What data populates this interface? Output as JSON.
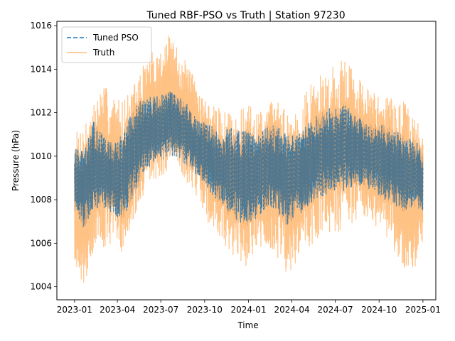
{
  "chart_data": {
    "type": "line",
    "title": "Tuned RBF-PSO vs Truth | Station 97230",
    "xlabel": "Time",
    "ylabel": "Pressure (hPa)",
    "xlim": [
      "2022-11-25",
      "2025-01-28"
    ],
    "ylim": [
      1003.4,
      1016.2
    ],
    "x_ticks": [
      "2023-01",
      "2023-04",
      "2023-07",
      "2023-10",
      "2024-01",
      "2024-04",
      "2024-07",
      "2024-10",
      "2025-01"
    ],
    "y_ticks": [
      "1004",
      "1006",
      "1008",
      "1010",
      "1012",
      "1014",
      "1016"
    ],
    "legend_placement": "top-left",
    "grid": false,
    "series": [
      {
        "name": "Tuned PSO",
        "color": "#1f77b4",
        "style": "dashed",
        "envelope": {
          "dates": [
            "2023-01-01",
            "2023-01-20",
            "2023-02-10",
            "2023-03-01",
            "2023-03-20",
            "2023-04-10",
            "2023-05-01",
            "2023-05-20",
            "2023-06-10",
            "2023-07-01",
            "2023-07-20",
            "2023-08-10",
            "2023-09-01",
            "2023-09-20",
            "2023-10-10",
            "2023-11-01",
            "2023-11-20",
            "2023-12-10",
            "2024-01-01",
            "2024-01-20",
            "2024-02-10",
            "2024-03-01",
            "2024-03-20",
            "2024-04-10",
            "2024-05-01",
            "2024-05-20",
            "2024-06-10",
            "2024-07-01",
            "2024-07-20",
            "2024-08-10",
            "2024-09-01",
            "2024-09-20",
            "2024-10-10",
            "2024-11-01",
            "2024-11-20",
            "2024-12-10",
            "2025-01-01"
          ],
          "low": [
            1007.4,
            1006.6,
            1007.6,
            1007.6,
            1007.4,
            1007.0,
            1008.0,
            1008.8,
            1009.6,
            1009.8,
            1010.0,
            1009.8,
            1009.4,
            1009.0,
            1008.4,
            1007.8,
            1007.2,
            1007.0,
            1006.8,
            1007.2,
            1007.6,
            1007.4,
            1006.8,
            1007.2,
            1007.6,
            1008.0,
            1008.2,
            1008.4,
            1008.4,
            1008.6,
            1008.6,
            1008.4,
            1008.0,
            1007.8,
            1007.4,
            1007.6,
            1007.4
          ],
          "high": [
            1010.4,
            1010.2,
            1011.6,
            1011.0,
            1010.6,
            1011.0,
            1012.0,
            1012.6,
            1012.8,
            1012.8,
            1013.0,
            1012.8,
            1012.2,
            1011.6,
            1011.6,
            1011.0,
            1011.4,
            1011.2,
            1011.2,
            1011.0,
            1011.4,
            1011.4,
            1011.0,
            1011.0,
            1011.4,
            1011.8,
            1012.2,
            1012.2,
            1012.4,
            1012.0,
            1011.6,
            1011.6,
            1011.6,
            1011.2,
            1011.0,
            1010.8,
            1010.4
          ]
        }
      },
      {
        "name": "Truth",
        "color": "#ffbb78",
        "style": "solid",
        "envelope": {
          "dates": [
            "2023-01-01",
            "2023-01-20",
            "2023-02-10",
            "2023-03-01",
            "2023-03-20",
            "2023-04-10",
            "2023-05-01",
            "2023-05-20",
            "2023-06-10",
            "2023-07-01",
            "2023-07-20",
            "2023-08-10",
            "2023-09-01",
            "2023-09-20",
            "2023-10-10",
            "2023-11-01",
            "2023-11-20",
            "2023-12-10",
            "2024-01-01",
            "2024-01-20",
            "2024-02-10",
            "2024-03-01",
            "2024-03-20",
            "2024-04-10",
            "2024-05-01",
            "2024-05-20",
            "2024-06-10",
            "2024-07-01",
            "2024-07-20",
            "2024-08-10",
            "2024-09-01",
            "2024-09-20",
            "2024-10-10",
            "2024-11-01",
            "2024-11-20",
            "2024-12-10",
            "2025-01-01"
          ],
          "low": [
            1005.2,
            1004.0,
            1005.6,
            1005.8,
            1006.0,
            1005.6,
            1006.8,
            1007.6,
            1008.8,
            1009.0,
            1009.4,
            1009.2,
            1008.6,
            1008.0,
            1006.8,
            1006.2,
            1005.6,
            1005.2,
            1004.8,
            1005.6,
            1005.8,
            1005.4,
            1004.6,
            1005.0,
            1005.8,
            1006.0,
            1006.6,
            1006.4,
            1006.6,
            1007.0,
            1007.2,
            1006.8,
            1006.6,
            1005.6,
            1004.8,
            1004.2,
            1005.8
          ],
          "high": [
            1011.0,
            1011.6,
            1012.4,
            1013.4,
            1012.8,
            1012.6,
            1013.0,
            1014.0,
            1014.8,
            1015.0,
            1015.6,
            1014.8,
            1014.0,
            1013.2,
            1012.4,
            1012.2,
            1012.0,
            1012.0,
            1012.4,
            1012.0,
            1012.6,
            1012.6,
            1012.2,
            1012.2,
            1013.0,
            1013.6,
            1013.8,
            1014.2,
            1014.6,
            1014.0,
            1013.2,
            1013.0,
            1013.0,
            1012.6,
            1012.6,
            1012.0,
            1011.2
          ]
        }
      }
    ]
  }
}
